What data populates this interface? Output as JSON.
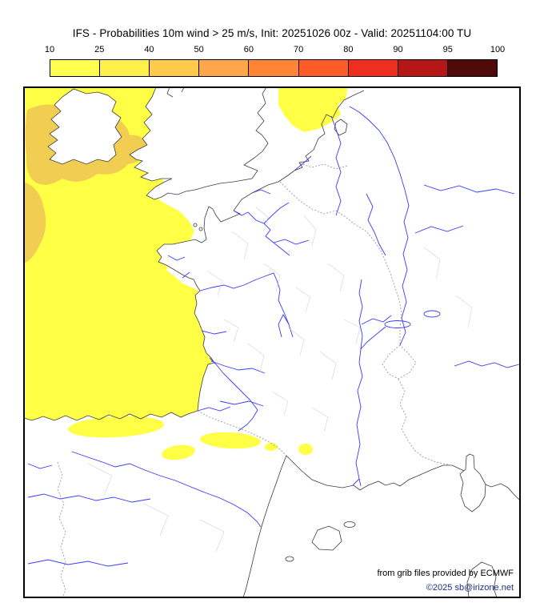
{
  "title": "IFS - Probabilities 10m wind > 25 m/s, Init: 20251026 00z - Valid: 20251104:00 TU",
  "colorbar": {
    "ticks": [
      "10",
      "25",
      "40",
      "50",
      "60",
      "70",
      "80",
      "90",
      "95",
      "100"
    ],
    "colors": [
      "#ffff4f",
      "#ffef4a",
      "#ffc94a",
      "#ffa64a",
      "#ff8433",
      "#ff5b26",
      "#ee2e1e",
      "#b51616",
      "#500a0a"
    ]
  },
  "map": {
    "colors": {
      "land": "#ffffff",
      "coast": "#3c3c3c",
      "river": "#3a3aff",
      "country_border": "#9a9a9a",
      "admin_border": "#c9c9c9",
      "prob_low": "#ffff45",
      "prob_mid": "#f1cd52"
    }
  },
  "attribution": {
    "line1": "from grib files provided by ECMWF",
    "line2": "©2025 sb@irizone.net",
    "line2_color": "#1a2f8a"
  }
}
